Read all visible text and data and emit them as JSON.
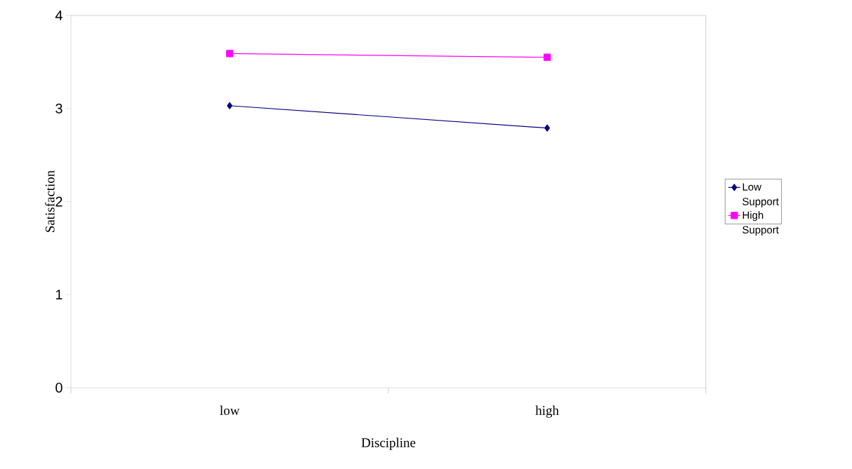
{
  "chart_data": {
    "type": "line",
    "xlabel": "Discipline",
    "ylabel": "Satisfaction",
    "categories": [
      "low",
      "high"
    ],
    "series": [
      {
        "name": "Low Support",
        "color": "#000080",
        "marker": "diamond",
        "values": [
          3.03,
          2.79
        ]
      },
      {
        "name": "High Support",
        "color": "#ff00ff",
        "marker": "square",
        "values": [
          3.59,
          3.55
        ]
      }
    ],
    "ylim": [
      0,
      4
    ],
    "yticks": [
      0,
      1,
      2,
      3,
      4
    ],
    "grid": false,
    "legend": "right"
  }
}
